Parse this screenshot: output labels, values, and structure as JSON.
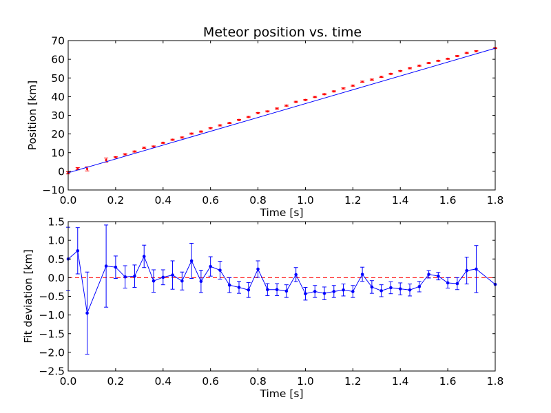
{
  "chart_data": [
    {
      "type": "scatter",
      "title": "Meteor position vs. time",
      "xlabel": "Time [s]",
      "ylabel": "Position [km]",
      "xlim": [
        0.0,
        1.8
      ],
      "ylim": [
        -10,
        70
      ],
      "xticks": [
        "0.0",
        "0.2",
        "0.4",
        "0.6",
        "0.8",
        "1.0",
        "1.2",
        "1.4",
        "1.6",
        "1.8"
      ],
      "yticks": [
        "−10",
        "0",
        "10",
        "20",
        "30",
        "40",
        "50",
        "60",
        "70"
      ],
      "grid": false,
      "legend": false,
      "colors": {
        "measurements": "#ff0000",
        "fit": "#0000ff"
      },
      "measurements": {
        "x": [
          0.0,
          0.04,
          0.08,
          0.16,
          0.2,
          0.24,
          0.28,
          0.32,
          0.36,
          0.4,
          0.44,
          0.48,
          0.52,
          0.56,
          0.6,
          0.64,
          0.68,
          0.72,
          0.76,
          0.8,
          0.84,
          0.88,
          0.92,
          0.96,
          1.0,
          1.04,
          1.08,
          1.12,
          1.16,
          1.2,
          1.24,
          1.28,
          1.32,
          1.36,
          1.4,
          1.44,
          1.48,
          1.52,
          1.56,
          1.6,
          1.64,
          1.68,
          1.72,
          1.8
        ],
        "y": [
          -0.8,
          1.4,
          1.3,
          6.0,
          7.5,
          9.1,
          10.6,
          12.6,
          13.3,
          15.3,
          16.9,
          18.1,
          20.2,
          21.3,
          23.1,
          24.6,
          25.9,
          27.5,
          29.1,
          31.2,
          32.1,
          33.6,
          35.2,
          37.2,
          38.2,
          39.8,
          41.3,
          42.8,
          44.4,
          45.9,
          48.0,
          49.1,
          50.6,
          52.2,
          53.7,
          55.2,
          56.6,
          58.0,
          59.2,
          60.3,
          61.7,
          63.4,
          64.3,
          66.0
        ],
        "yerr": [
          0.6,
          0.6,
          1.1,
          1.1,
          0.3,
          0.3,
          0.3,
          0.3,
          0.3,
          0.3,
          0.3,
          0.3,
          0.3,
          0.3,
          0.3,
          0.3,
          0.3,
          0.3,
          0.3,
          0.3,
          0.3,
          0.3,
          0.3,
          0.3,
          0.3,
          0.3,
          0.3,
          0.3,
          0.3,
          0.3,
          0.3,
          0.3,
          0.3,
          0.3,
          0.3,
          0.3,
          0.3,
          0.3,
          0.3,
          0.3,
          0.3,
          0.3,
          0.3,
          0.3
        ]
      },
      "fit_line": {
        "x": [
          0.0,
          1.8
        ],
        "y": [
          -0.8,
          65.9
        ]
      }
    },
    {
      "type": "line",
      "title": "",
      "xlabel": "Time [s]",
      "ylabel": "Fit deviation [km]",
      "xlim": [
        0.0,
        1.8
      ],
      "ylim": [
        -2.5,
        1.5
      ],
      "xticks": [
        "0.0",
        "0.2",
        "0.4",
        "0.6",
        "0.8",
        "1.0",
        "1.2",
        "1.4",
        "1.6",
        "1.8"
      ],
      "yticks": [
        "−2.5",
        "−2.0",
        "−1.5",
        "−1.0",
        "−0.5",
        "0.0",
        "0.5",
        "1.0",
        "1.5"
      ],
      "grid": false,
      "legend": false,
      "colors": {
        "series": "#0000ff",
        "reference": "#ff0000"
      },
      "reference_y": 0.0,
      "series": {
        "x": [
          0.0,
          0.04,
          0.08,
          0.16,
          0.2,
          0.24,
          0.28,
          0.32,
          0.36,
          0.4,
          0.44,
          0.48,
          0.52,
          0.56,
          0.6,
          0.64,
          0.68,
          0.72,
          0.76,
          0.8,
          0.84,
          0.88,
          0.92,
          0.96,
          1.0,
          1.04,
          1.08,
          1.12,
          1.16,
          1.2,
          1.24,
          1.28,
          1.32,
          1.36,
          1.4,
          1.44,
          1.48,
          1.52,
          1.56,
          1.6,
          1.64,
          1.68,
          1.72,
          1.8
        ],
        "y": [
          0.5,
          0.72,
          -0.95,
          0.31,
          0.28,
          0.02,
          0.04,
          0.57,
          -0.09,
          0.01,
          0.07,
          -0.09,
          0.45,
          -0.1,
          0.3,
          0.2,
          -0.2,
          -0.26,
          -0.33,
          0.23,
          -0.32,
          -0.32,
          -0.36,
          0.08,
          -0.43,
          -0.37,
          -0.42,
          -0.37,
          -0.33,
          -0.37,
          0.09,
          -0.25,
          -0.35,
          -0.27,
          -0.3,
          -0.33,
          -0.24,
          0.09,
          0.04,
          -0.14,
          -0.16,
          0.19,
          0.23,
          -0.18
        ],
        "yerr": [
          0.85,
          0.62,
          1.1,
          1.1,
          0.3,
          0.3,
          0.3,
          0.3,
          0.3,
          0.2,
          0.38,
          0.24,
          0.47,
          0.3,
          0.26,
          0.24,
          0.2,
          0.16,
          0.2,
          0.22,
          0.16,
          0.16,
          0.17,
          0.19,
          0.17,
          0.16,
          0.17,
          0.16,
          0.16,
          0.16,
          0.19,
          0.17,
          0.16,
          0.16,
          0.16,
          0.16,
          0.14,
          0.1,
          0.1,
          0.14,
          0.16,
          0.36,
          0.63,
          0.0
        ]
      }
    }
  ]
}
